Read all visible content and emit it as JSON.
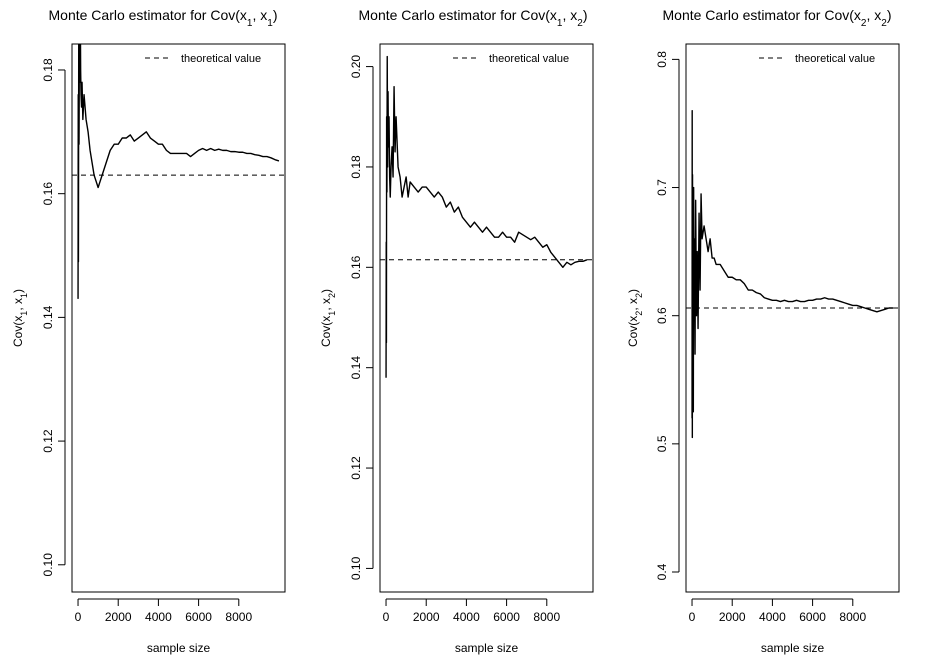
{
  "chart_data": [
    {
      "type": "line",
      "title": "Monte Carlo estimator for Cov(x₁, x₁)",
      "title_parts": {
        "prefix": "Monte Carlo estimator for Cov(x",
        "sub_a": "1",
        "sep": ", x",
        "sub_b": "1",
        "suffix": ")"
      },
      "xlabel": "sample size",
      "ylabel": "Cov(x₁, x₁)",
      "ylabel_parts": {
        "prefix": "Cov(x",
        "sub_a": "1",
        "sep": ", x",
        "sub_b": "1",
        "suffix": ")"
      },
      "xlim": [
        -300,
        10300
      ],
      "ylim": [
        0.0956,
        0.1842
      ],
      "x_ticks": [
        0,
        2000,
        4000,
        6000,
        8000
      ],
      "y_ticks": [
        0.1,
        0.12,
        0.14,
        0.16,
        0.18
      ],
      "y_tick_labels": [
        "0.10",
        "0.12",
        "0.14",
        "0.16",
        "0.18"
      ],
      "legend": {
        "label": "theoretical value",
        "position": "top-right",
        "line_style": "dashed"
      },
      "theoretical_value": 0.163,
      "series": [
        {
          "name": "",
          "style": "solid",
          "x": [
            1,
            10,
            20,
            35,
            50,
            70,
            90,
            110,
            130,
            150,
            175,
            200,
            240,
            300,
            400,
            500,
            600,
            700,
            800,
            900,
            1000,
            1100,
            1200,
            1400,
            1600,
            1800,
            2000,
            2200,
            2400,
            2600,
            2800,
            3000,
            3200,
            3400,
            3600,
            3800,
            4000,
            4200,
            4400,
            4600,
            4800,
            5000,
            5200,
            5400,
            5600,
            5800,
            6000,
            6200,
            6400,
            6600,
            6800,
            7000,
            7200,
            7400,
            7600,
            7800,
            8000,
            8200,
            8400,
            8600,
            8800,
            9000,
            9200,
            9400,
            9600,
            9800,
            10000
          ],
          "y": [
            0.143,
            0.176,
            0.149,
            0.185,
            0.168,
            0.187,
            0.178,
            0.192,
            0.18,
            0.176,
            0.174,
            0.178,
            0.172,
            0.176,
            0.172,
            0.17,
            0.167,
            0.165,
            0.163,
            0.162,
            0.161,
            0.162,
            0.163,
            0.165,
            0.167,
            0.168,
            0.168,
            0.169,
            0.169,
            0.1695,
            0.1685,
            0.169,
            0.1695,
            0.17,
            0.169,
            0.1685,
            0.168,
            0.168,
            0.167,
            0.1665,
            0.1665,
            0.1665,
            0.1665,
            0.1665,
            0.166,
            0.1665,
            0.167,
            0.1673,
            0.167,
            0.1673,
            0.167,
            0.1672,
            0.167,
            0.167,
            0.1668,
            0.1668,
            0.1667,
            0.1667,
            0.1665,
            0.1665,
            0.1663,
            0.1662,
            0.166,
            0.166,
            0.1658,
            0.1655,
            0.1653
          ]
        }
      ]
    },
    {
      "type": "line",
      "title": "Monte Carlo estimator for Cov(x₁, x₂)",
      "title_parts": {
        "prefix": "Monte Carlo estimator for Cov(x",
        "sub_a": "1",
        "sep": ", x",
        "sub_b": "2",
        "suffix": ")"
      },
      "xlabel": "sample size",
      "ylabel": "Cov(x₁, x₂)",
      "ylabel_parts": {
        "prefix": "Cov(x",
        "sub_a": "1",
        "sep": ", x",
        "sub_b": "2",
        "suffix": ")"
      },
      "xlim": [
        -300,
        10300
      ],
      "ylim": [
        0.0953,
        0.2045
      ],
      "x_ticks": [
        0,
        2000,
        4000,
        6000,
        8000
      ],
      "y_ticks": [
        0.1,
        0.12,
        0.14,
        0.16,
        0.18,
        0.2
      ],
      "y_tick_labels": [
        "0.10",
        "0.12",
        "0.14",
        "0.16",
        "0.18",
        "0.20"
      ],
      "legend": {
        "label": "theoretical value",
        "position": "top-right",
        "line_style": "dashed"
      },
      "theoretical_value": 0.1615,
      "series": [
        {
          "name": "",
          "style": "solid",
          "x": [
            1,
            10,
            20,
            30,
            45,
            60,
            80,
            100,
            120,
            150,
            180,
            210,
            250,
            300,
            350,
            400,
            450,
            500,
            600,
            700,
            800,
            900,
            1000,
            1100,
            1200,
            1400,
            1600,
            1800,
            2000,
            2200,
            2400,
            2600,
            2800,
            3000,
            3200,
            3400,
            3600,
            3800,
            4000,
            4200,
            4400,
            4600,
            4800,
            5000,
            5200,
            5400,
            5600,
            5800,
            6000,
            6200,
            6400,
            6600,
            6800,
            7000,
            7200,
            7400,
            7600,
            7800,
            8000,
            8200,
            8400,
            8600,
            8800,
            9000,
            9200,
            9400,
            9600,
            9800,
            10000
          ],
          "y": [
            0.138,
            0.165,
            0.145,
            0.19,
            0.175,
            0.202,
            0.18,
            0.195,
            0.184,
            0.19,
            0.178,
            0.174,
            0.18,
            0.184,
            0.178,
            0.196,
            0.183,
            0.19,
            0.18,
            0.178,
            0.174,
            0.176,
            0.178,
            0.174,
            0.177,
            0.176,
            0.175,
            0.176,
            0.176,
            0.175,
            0.174,
            0.175,
            0.174,
            0.172,
            0.173,
            0.171,
            0.172,
            0.17,
            0.169,
            0.168,
            0.169,
            0.168,
            0.167,
            0.168,
            0.167,
            0.166,
            0.166,
            0.167,
            0.166,
            0.166,
            0.165,
            0.167,
            0.1665,
            0.166,
            0.1655,
            0.166,
            0.165,
            0.164,
            0.1645,
            0.163,
            0.162,
            0.161,
            0.16,
            0.161,
            0.1605,
            0.161,
            0.1612,
            0.1612,
            0.1615
          ]
        }
      ]
    },
    {
      "type": "line",
      "title": "Monte Carlo estimator for Cov(x₂, x₂)",
      "title_parts": {
        "prefix": "Monte Carlo estimator for Cov(x",
        "sub_a": "2",
        "sep": ", x",
        "sub_b": "2",
        "suffix": ")"
      },
      "xlabel": "sample size",
      "ylabel": "Cov(x₂, x₂)",
      "ylabel_parts": {
        "prefix": "Cov(x",
        "sub_a": "2",
        "sep": ", x",
        "sub_b": "2",
        "suffix": ")"
      },
      "xlim": [
        -300,
        10300
      ],
      "ylim": [
        0.3844,
        0.812
      ],
      "x_ticks": [
        0,
        2000,
        4000,
        6000,
        8000
      ],
      "y_ticks": [
        0.4,
        0.5,
        0.6,
        0.7,
        0.8
      ],
      "y_tick_labels": [
        "0.4",
        "0.5",
        "0.6",
        "0.7",
        "0.8"
      ],
      "legend": {
        "label": "theoretical value",
        "position": "top-right",
        "line_style": "dashed"
      },
      "theoretical_value": 0.606,
      "series": [
        {
          "name": "",
          "style": "solid",
          "x": [
            1,
            8,
            15,
            25,
            35,
            50,
            65,
            80,
            100,
            120,
            150,
            180,
            220,
            260,
            300,
            350,
            400,
            450,
            500,
            600,
            700,
            800,
            900,
            1000,
            1100,
            1200,
            1400,
            1600,
            1800,
            2000,
            2200,
            2400,
            2600,
            2800,
            3000,
            3200,
            3400,
            3600,
            3800,
            4000,
            4200,
            4400,
            4600,
            4800,
            5000,
            5200,
            5400,
            5600,
            5800,
            6000,
            6200,
            6400,
            6600,
            6800,
            7000,
            7200,
            7400,
            7600,
            7800,
            8000,
            8200,
            8400,
            8600,
            8800,
            9000,
            9200,
            9400,
            9600,
            9800,
            10000
          ],
          "y": [
            0.52,
            0.76,
            0.505,
            0.71,
            0.56,
            0.67,
            0.525,
            0.7,
            0.6,
            0.66,
            0.57,
            0.69,
            0.6,
            0.65,
            0.59,
            0.68,
            0.62,
            0.695,
            0.66,
            0.67,
            0.66,
            0.65,
            0.66,
            0.645,
            0.645,
            0.64,
            0.64,
            0.635,
            0.63,
            0.63,
            0.628,
            0.628,
            0.625,
            0.62,
            0.62,
            0.618,
            0.617,
            0.614,
            0.613,
            0.612,
            0.612,
            0.611,
            0.612,
            0.611,
            0.611,
            0.612,
            0.611,
            0.611,
            0.612,
            0.612,
            0.613,
            0.613,
            0.614,
            0.613,
            0.613,
            0.612,
            0.611,
            0.61,
            0.609,
            0.608,
            0.608,
            0.607,
            0.606,
            0.605,
            0.604,
            0.603,
            0.604,
            0.605,
            0.606,
            0.606
          ]
        }
      ]
    }
  ]
}
